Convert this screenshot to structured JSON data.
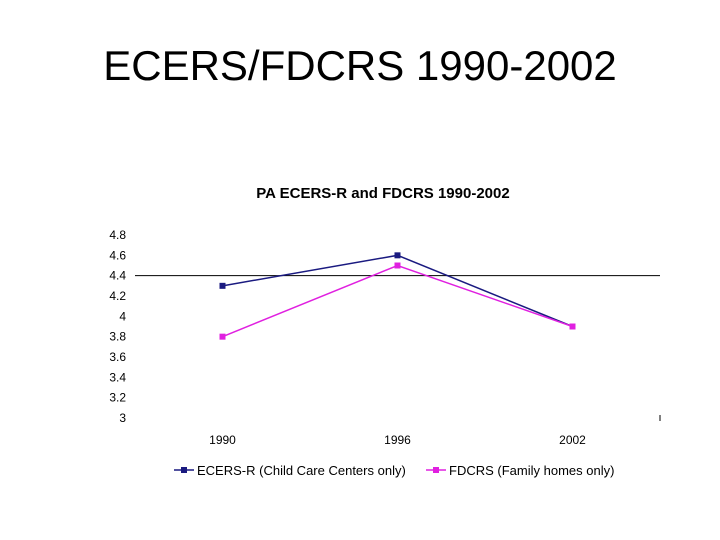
{
  "slide": {
    "title": "ECERS/FDCRS 1990-2002"
  },
  "chart_data": {
    "type": "line",
    "title": "PA ECERS-R and FDCRS 1990-2002",
    "categories": [
      "1990",
      "1996",
      "2002"
    ],
    "series": [
      {
        "name": "ECERS-R (Child Care Centers only)",
        "values": [
          4.3,
          4.6,
          3.9
        ],
        "color": "#1a1a80",
        "marker": "square"
      },
      {
        "name": "FDCRS (Family homes only)",
        "values": [
          3.8,
          4.5,
          3.9
        ],
        "color": "#e020e0",
        "marker": "square"
      }
    ],
    "ylim": [
      3,
      4.8
    ],
    "yticks": [
      "4.8",
      "4.6",
      "4.4",
      "4.2",
      "4",
      "3.8",
      "3.6",
      "3.4",
      "3.2",
      "3"
    ],
    "reference_line": 4.4,
    "legend": "bottom",
    "grid": false
  }
}
